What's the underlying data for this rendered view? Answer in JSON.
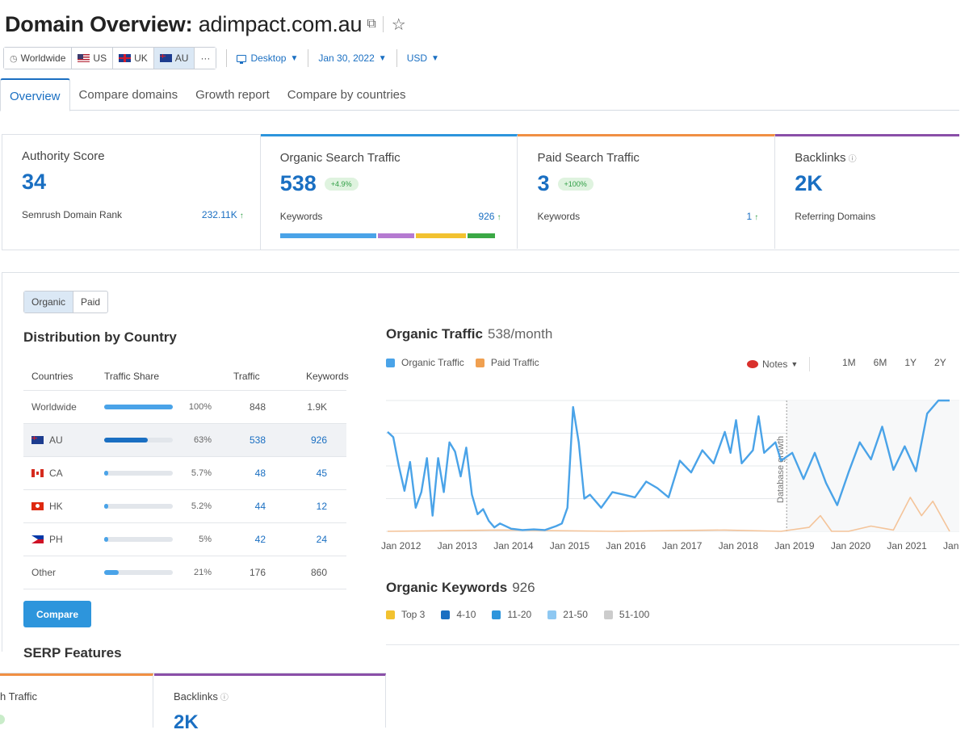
{
  "header": {
    "title_label": "Domain Overview:",
    "domain": "adimpact.com.au",
    "external_icon": "external-link-icon",
    "star_icon": "star-icon"
  },
  "filters": {
    "databases": [
      {
        "label": "Worldwide",
        "icon": "globe-icon",
        "active": false
      },
      {
        "label": "US",
        "icon": "us-flag-icon",
        "active": false
      },
      {
        "label": "UK",
        "icon": "uk-flag-icon",
        "active": false
      },
      {
        "label": "AU",
        "icon": "au-flag-icon",
        "active": true
      },
      {
        "label": "···",
        "icon": "",
        "active": false
      }
    ],
    "device": "Desktop",
    "date": "Jan 30, 2022",
    "currency": "USD"
  },
  "tabs": [
    {
      "label": "Overview",
      "active": true
    },
    {
      "label": "Compare domains",
      "active": false
    },
    {
      "label": "Growth report",
      "active": false
    },
    {
      "label": "Compare by countries",
      "active": false
    }
  ],
  "cards": {
    "authority": {
      "title": "Authority Score",
      "value": "34",
      "row_label": "Semrush Domain Rank",
      "row_value": "232.11K",
      "row_arrow": "↑"
    },
    "organic": {
      "title": "Organic Search Traffic",
      "value": "538",
      "badge": "+4.9%",
      "row_label": "Keywords",
      "row_value": "926",
      "row_arrow": "↑",
      "bar": [
        {
          "share": 0.46,
          "color": "#4aa3e8"
        },
        {
          "share": 0.17,
          "color": "#b57ad1"
        },
        {
          "share": 0.24,
          "color": "#f2c230"
        },
        {
          "share": 0.13,
          "color": "#3aa845"
        }
      ]
    },
    "paid": {
      "title": "Paid Search Traffic",
      "value": "3",
      "badge": "+100%",
      "row_label": "Keywords",
      "row_value": "1",
      "row_arrow": "↑"
    },
    "backlinks": {
      "title": "Backlinks",
      "value": "2K",
      "row_label": "Referring Domains"
    }
  },
  "panel": {
    "toggle": [
      {
        "label": "Organic",
        "active": true
      },
      {
        "label": "Paid",
        "active": false
      }
    ],
    "distribution_title": "Distribution by Country",
    "table_headers": {
      "countries": "Countries",
      "share": "Traffic Share",
      "traffic": "Traffic",
      "keywords": "Keywords"
    },
    "rows": [
      {
        "country": "Worldwide",
        "flag": "",
        "share": 1.0,
        "share_label": "100%",
        "traffic": "848",
        "keywords": "1.9K",
        "selected": false,
        "dark": false,
        "linked": false
      },
      {
        "country": "AU",
        "flag": "au",
        "share": 0.63,
        "share_label": "63%",
        "traffic": "538",
        "keywords": "926",
        "selected": true,
        "dark": true,
        "linked": true
      },
      {
        "country": "CA",
        "flag": "ca",
        "share": 0.057,
        "share_label": "5.7%",
        "traffic": "48",
        "keywords": "45",
        "selected": false,
        "dark": false,
        "linked": true
      },
      {
        "country": "HK",
        "flag": "hk",
        "share": 0.052,
        "share_label": "5.2%",
        "traffic": "44",
        "keywords": "12",
        "selected": false,
        "dark": false,
        "linked": true
      },
      {
        "country": "PH",
        "flag": "ph",
        "share": 0.05,
        "share_label": "5%",
        "traffic": "42",
        "keywords": "24",
        "selected": false,
        "dark": false,
        "linked": true
      },
      {
        "country": "Other",
        "flag": "",
        "share": 0.21,
        "share_label": "21%",
        "traffic": "176",
        "keywords": "860",
        "selected": false,
        "dark": false,
        "linked": false
      }
    ],
    "compare_label": "Compare",
    "serp_label": "SERP Features"
  },
  "organic_traffic": {
    "title": "Organic Traffic",
    "subtitle": "538/month",
    "legend": [
      {
        "label": "Organic Traffic",
        "color": "#4aa3e8"
      },
      {
        "label": "Paid Traffic",
        "color": "#f0a050"
      }
    ],
    "notes_label": "Notes",
    "ranges": [
      "1M",
      "6M",
      "1Y",
      "2Y"
    ]
  },
  "chart_data": {
    "type": "line",
    "x_labels": [
      "Jan 2012",
      "Jan 2013",
      "Jan 2014",
      "Jan 2015",
      "Jan 2016",
      "Jan 2017",
      "Jan 2018",
      "Jan 2019",
      "Jan 2020",
      "Jan 2021",
      "Jan"
    ],
    "annotation": "Database growth",
    "annotation_year": 2019.1,
    "ylim": [
      0,
      1000
    ],
    "grid": true,
    "series": [
      {
        "name": "Organic Traffic",
        "color": "#4aa3e8",
        "x": [
          2012.0,
          2012.1,
          2012.2,
          2012.3,
          2012.4,
          2012.5,
          2012.6,
          2012.7,
          2012.8,
          2012.9,
          2013.0,
          2013.1,
          2013.2,
          2013.3,
          2013.4,
          2013.5,
          2013.6,
          2013.7,
          2013.8,
          2013.9,
          2014.0,
          2014.2,
          2014.4,
          2014.6,
          2014.8,
          2015.0,
          2015.1,
          2015.2,
          2015.3,
          2015.4,
          2015.5,
          2015.6,
          2015.8,
          2016.0,
          2016.2,
          2016.4,
          2016.6,
          2016.8,
          2017.0,
          2017.2,
          2017.4,
          2017.6,
          2017.8,
          2018.0,
          2018.1,
          2018.2,
          2018.3,
          2018.5,
          2018.6,
          2018.7,
          2018.9,
          2019.0,
          2019.2,
          2019.4,
          2019.6,
          2019.8,
          2020.0,
          2020.2,
          2020.4,
          2020.6,
          2020.8,
          2021.0,
          2021.2,
          2021.4,
          2021.6,
          2021.8,
          2022.0
        ],
        "values": [
          760,
          720,
          500,
          310,
          530,
          180,
          300,
          560,
          120,
          560,
          300,
          680,
          610,
          420,
          640,
          280,
          130,
          170,
          80,
          30,
          60,
          20,
          10,
          15,
          10,
          40,
          60,
          180,
          950,
          680,
          250,
          280,
          180,
          300,
          280,
          260,
          380,
          330,
          260,
          540,
          450,
          620,
          520,
          760,
          600,
          850,
          520,
          620,
          880,
          600,
          680,
          540,
          600,
          400,
          600,
          370,
          200,
          450,
          680,
          550,
          800,
          470,
          650,
          460,
          900,
          1000,
          1000
        ]
      },
      {
        "name": "Paid Traffic",
        "color": "#f4c49a",
        "x": [
          2012.0,
          2014.0,
          2016.0,
          2018.0,
          2019.0,
          2019.5,
          2019.7,
          2019.9,
          2020.2,
          2020.6,
          2021.0,
          2021.3,
          2021.5,
          2021.7,
          2022.0
        ],
        "values": [
          0,
          10,
          0,
          10,
          0,
          30,
          120,
          0,
          0,
          40,
          10,
          260,
          120,
          230,
          0
        ]
      }
    ]
  },
  "organic_keywords": {
    "title": "Organic Keywords",
    "count": "926",
    "legend": [
      {
        "label": "Top 3",
        "color": "#f2c230"
      },
      {
        "label": "4-10",
        "color": "#1a6fc2"
      },
      {
        "label": "11-20",
        "color": "#2d95dc"
      },
      {
        "label": "21-50",
        "color": "#8ec8f2"
      },
      {
        "label": "51-100",
        "color": "#cccccc"
      }
    ]
  },
  "duplicate_strip": {
    "left_title": "h Traffic",
    "right_title": "Backlinks",
    "right_value": "2K"
  }
}
